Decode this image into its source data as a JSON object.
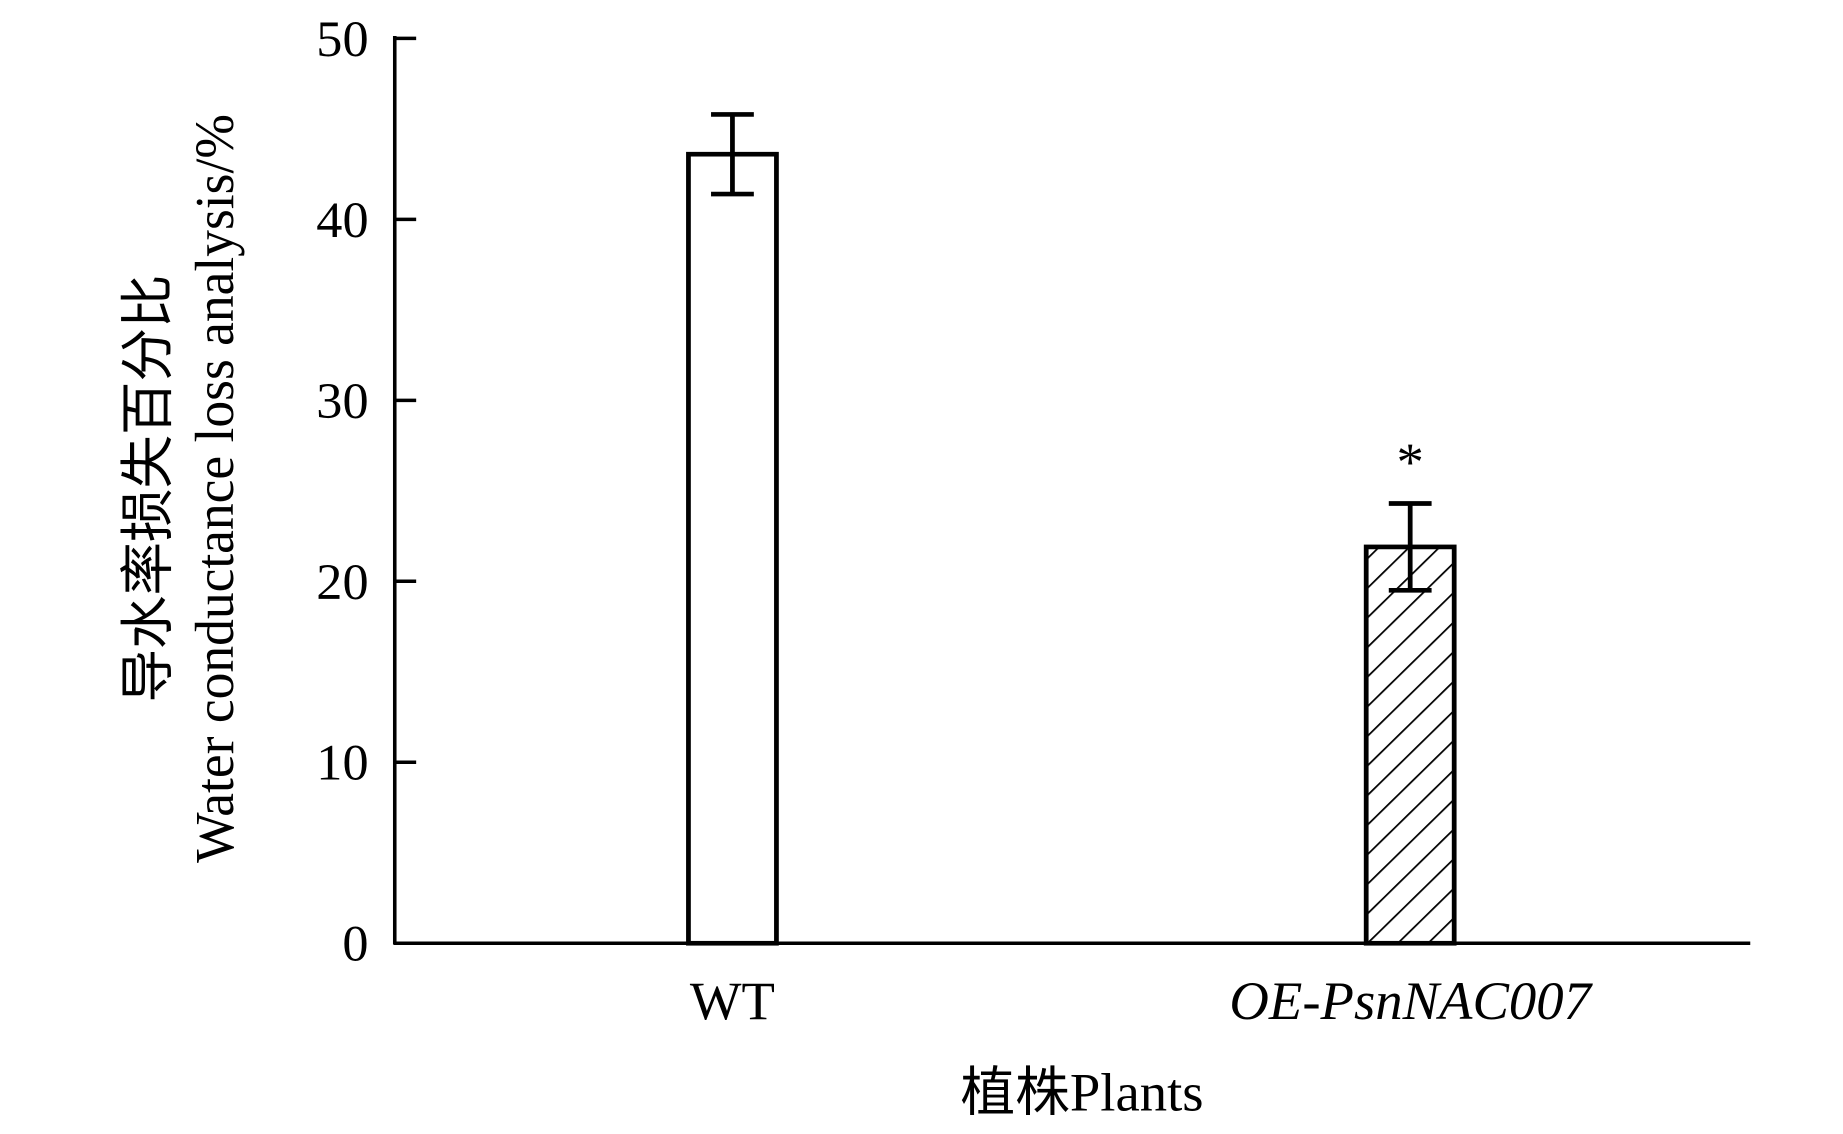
{
  "chart_data": {
    "type": "bar",
    "title": "",
    "categories": [
      "WT",
      "OE-PsnNAC007"
    ],
    "values": [
      43.6,
      21.9
    ],
    "errors": [
      2.2,
      2.4
    ],
    "annotations": [
      "",
      "*"
    ],
    "fills": [
      "none",
      "hatched"
    ],
    "xlabel": "植株Plants",
    "ylabel_cn": "导水率损失百分比",
    "ylabel_en": "Water conductance loss analysis/%",
    "ylim": [
      0,
      50
    ],
    "yticks": [
      0,
      10,
      20,
      30,
      40,
      50
    ],
    "grid": false,
    "colors": {
      "bar_stroke": "#000000",
      "bar_fill": "#ffffff"
    }
  }
}
